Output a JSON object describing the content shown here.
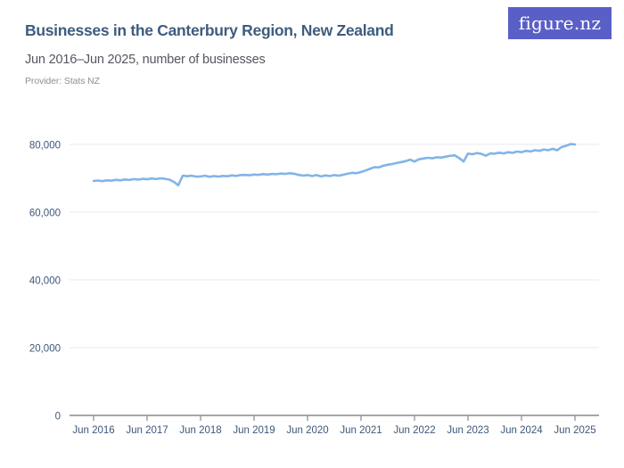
{
  "header": {
    "title": "Businesses in the Canterbury Region, New Zealand",
    "subtitle": "Jun 2016–Jun 2025, number of businesses",
    "provider": "Provider: Stats NZ",
    "logo_text": "figure.nz",
    "logo_bg_color": "#5a5fc7"
  },
  "chart_data": {
    "type": "line",
    "title": "Businesses in the Canterbury Region, New Zealand",
    "subtitle": "Jun 2016–Jun 2025, number of businesses",
    "series_name": "Number of businesses",
    "x_interval": "monthly",
    "x_start": "Jun 2016",
    "x_end": "Jun 2025",
    "x_tick_labels": [
      "Jun 2016",
      "Jun 2017",
      "Jun 2018",
      "Jun 2019",
      "Jun 2020",
      "Jun 2021",
      "Jun 2022",
      "Jun 2023",
      "Jun 2024",
      "Jun 2025"
    ],
    "y_ticks": [
      0,
      20000,
      40000,
      60000,
      80000
    ],
    "y_tick_labels": [
      "0",
      "20,000",
      "40,000",
      "60,000",
      "80,000"
    ],
    "ylim": [
      0,
      85000
    ],
    "grid": "horizontal",
    "legend": "none",
    "line_color": "#82b4e8",
    "axis_color": "#898a8e",
    "gridline_color": "#e9e9ec",
    "label_color": "#3d577a",
    "values": [
      69200,
      69350,
      69150,
      69400,
      69300,
      69550,
      69400,
      69650,
      69500,
      69750,
      69600,
      69850,
      69700,
      69950,
      69750,
      70000,
      69850,
      69600,
      68950,
      67950,
      70800,
      70600,
      70750,
      70500,
      70550,
      70750,
      70450,
      70650,
      70500,
      70700,
      70600,
      70850,
      70700,
      70950,
      71000,
      70900,
      71100,
      71000,
      71250,
      71100,
      71300,
      71200,
      71400,
      71300,
      71500,
      71350,
      71000,
      70800,
      70950,
      70650,
      70950,
      70550,
      70850,
      70650,
      70950,
      70750,
      71050,
      71350,
      71600,
      71500,
      71850,
      72300,
      72800,
      73300,
      73200,
      73700,
      74000,
      74200,
      74500,
      74800,
      75050,
      75500,
      74950,
      75600,
      75850,
      76050,
      75900,
      76200,
      76100,
      76400,
      76600,
      76800,
      76000,
      74950,
      77300,
      77100,
      77450,
      77200,
      76650,
      77350,
      77250,
      77550,
      77350,
      77700,
      77500,
      77900,
      77700,
      78100,
      77900,
      78300,
      78100,
      78500,
      78300,
      78700,
      78250,
      79200,
      79600,
      80100,
      80000
    ]
  }
}
